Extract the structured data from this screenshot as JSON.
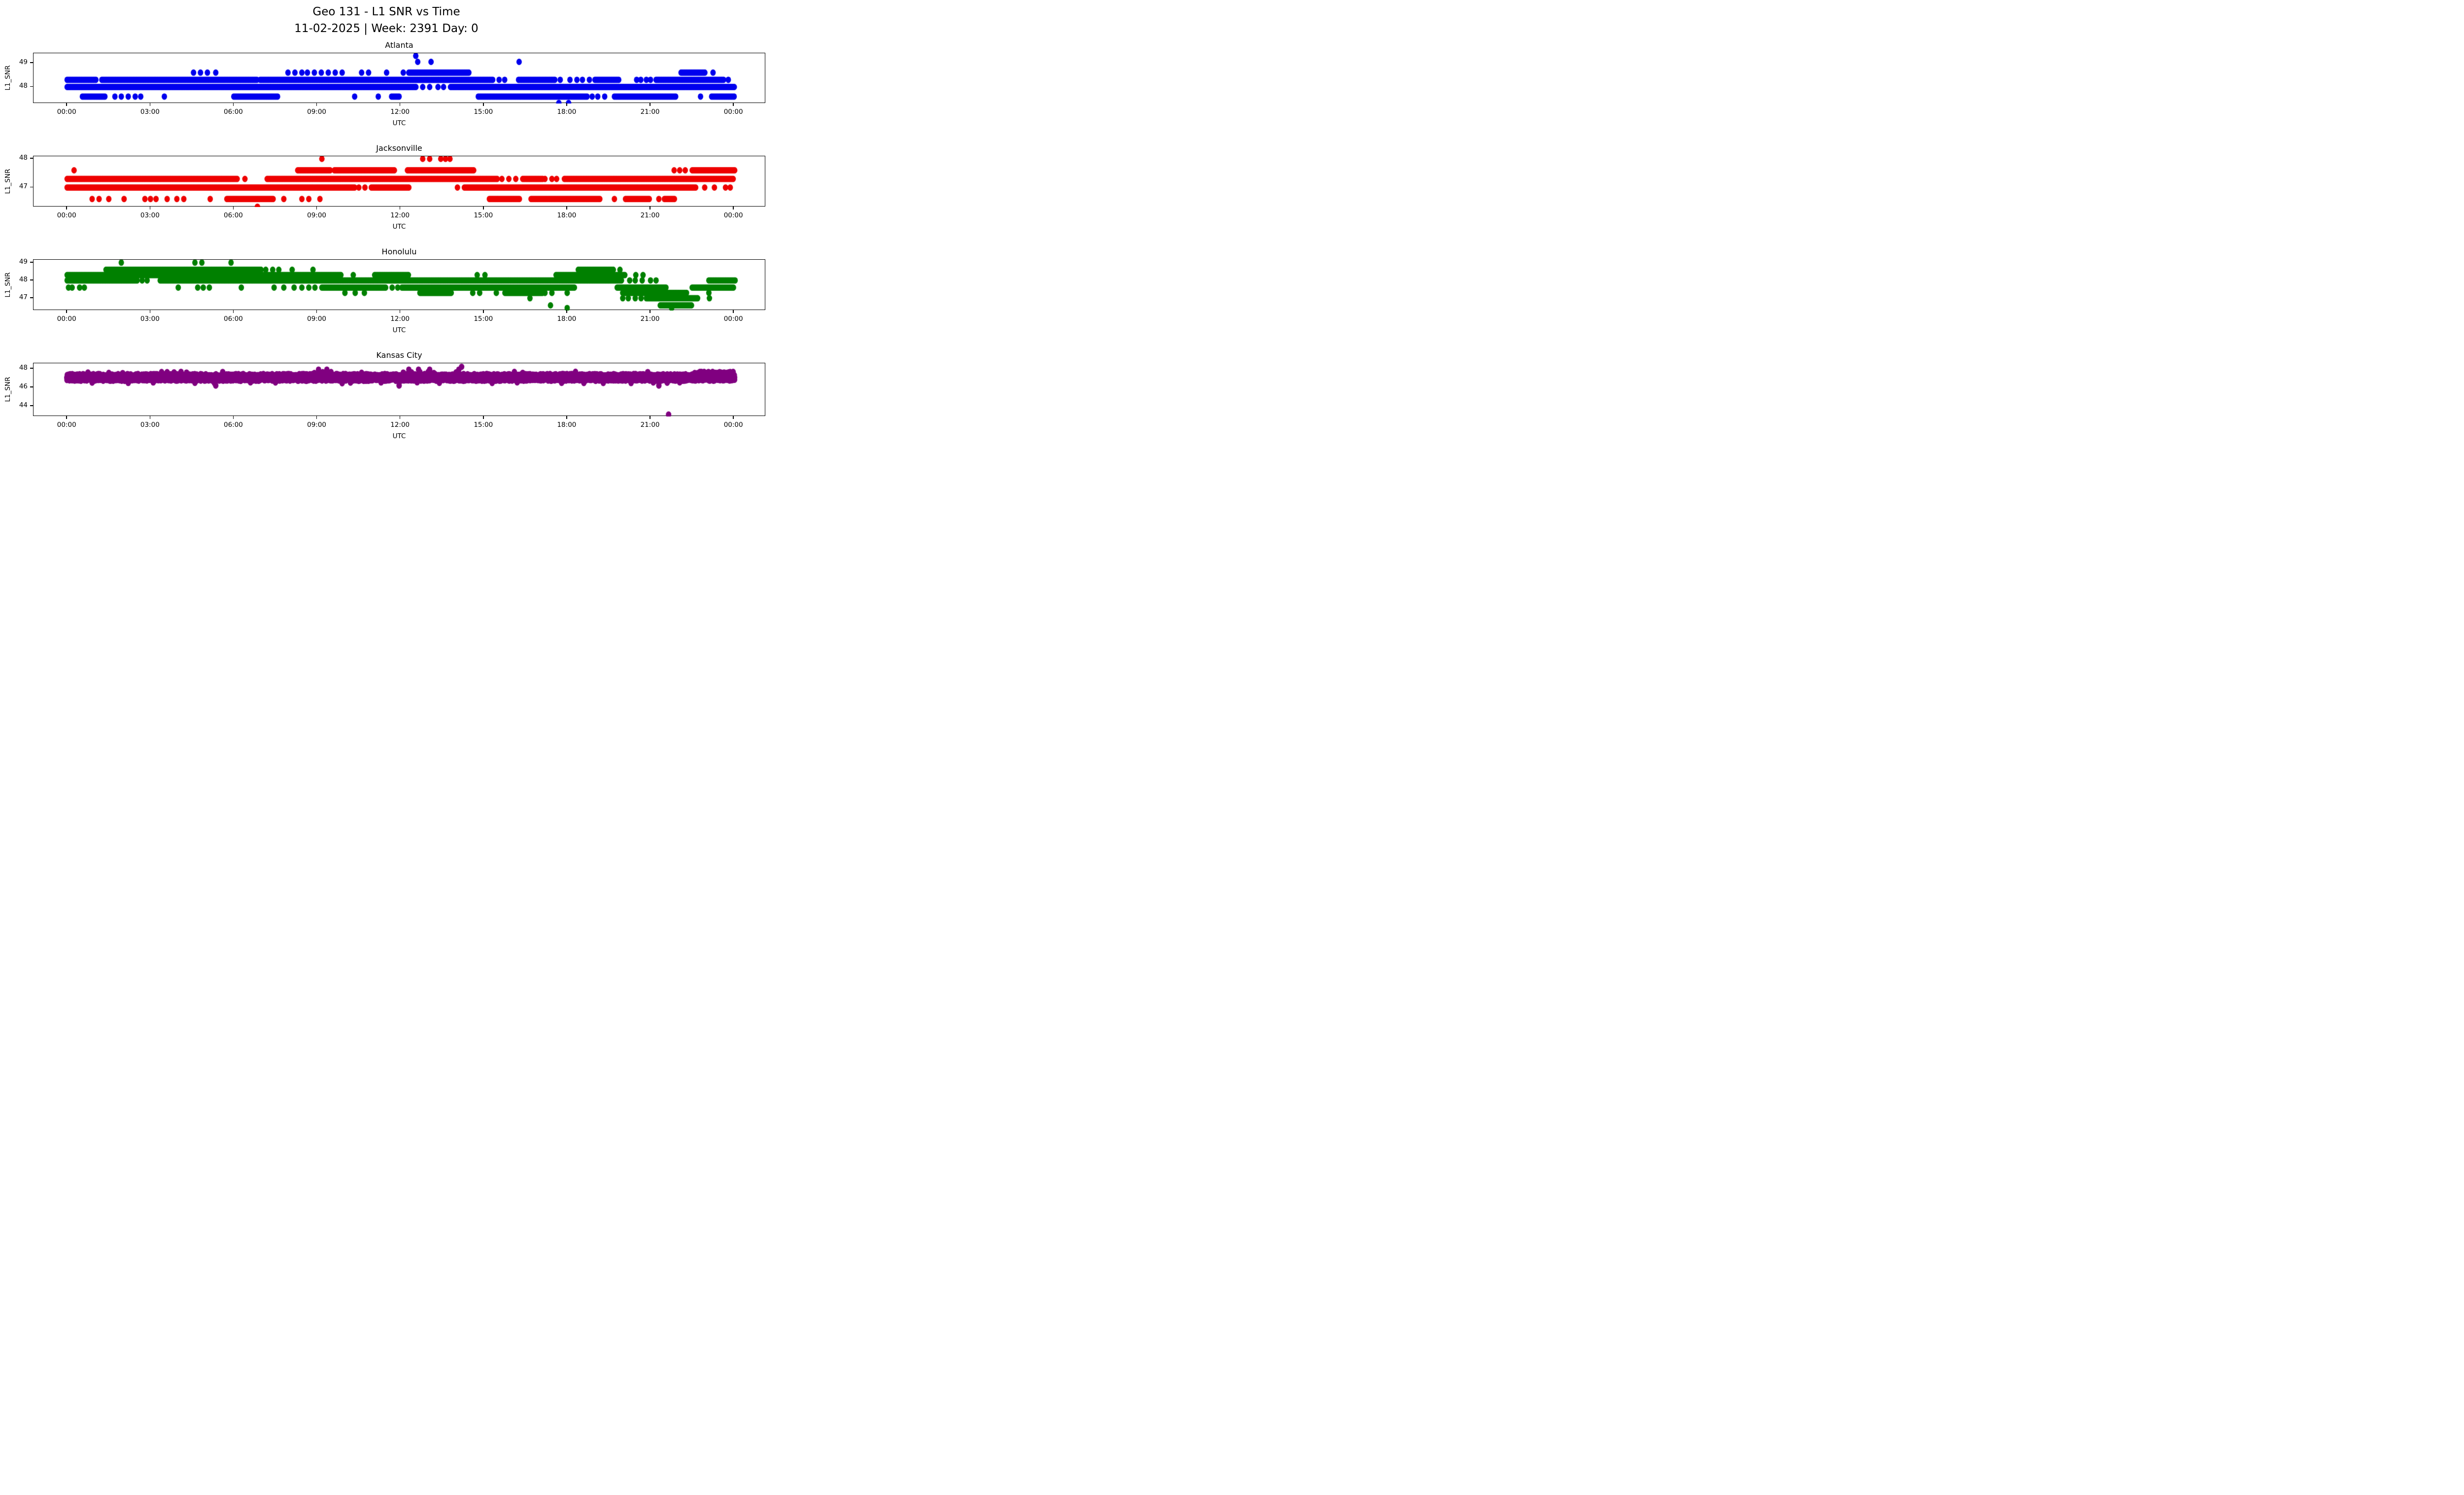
{
  "figure_title": {
    "line1": "Geo 131 - L1 SNR vs Time",
    "line2": "11-02-2025 | Week: 2391 Day: 0"
  },
  "axes_common": {
    "xlabel": "UTC",
    "ylabel": "L1_SNR",
    "x_tick_labels": [
      "00:00",
      "03:00",
      "06:00",
      "09:00",
      "12:00",
      "15:00",
      "18:00",
      "21:00",
      "00:00"
    ],
    "x_tick_hours": [
      0,
      3,
      6,
      9,
      12,
      15,
      18,
      21,
      24
    ],
    "xlim_hours": [
      -1.21,
      25.15
    ]
  },
  "chart_data": [
    {
      "type": "scatter",
      "title": "Atlanta",
      "color": "#0000ee",
      "xlabel": "UTC",
      "ylabel": "L1_SNR",
      "yticks": [
        49,
        48
      ],
      "ylim": [
        47.31,
        49.41
      ],
      "grid": false,
      "legend": "none",
      "bands": [
        {
          "snr": 49.3,
          "dots": [
            12.55
          ]
        },
        {
          "snr": 49.05,
          "dots": [
            12.62,
            13.1,
            16.27
          ]
        },
        {
          "snr": 48.6,
          "solid": [
            [
              12.3,
              14.5
            ],
            [
              22.1,
              23.0
            ]
          ],
          "dots": [
            4.55,
            4.8,
            5.05,
            5.35,
            7.95,
            8.2,
            8.45,
            8.65,
            8.9,
            9.15,
            9.4,
            9.65,
            9.9,
            10.6,
            10.85,
            11.5,
            12.1,
            23.25
          ]
        },
        {
          "snr": 48.3,
          "solid": [
            [
              0,
              1.05
            ],
            [
              1.25,
              6.83
            ],
            [
              6.95,
              15.35
            ],
            [
              16.25,
              17.6
            ],
            [
              19.0,
              19.9
            ],
            [
              21.2,
              23.65
            ]
          ],
          "dots": [
            15.55,
            15.75,
            17.75,
            18.1,
            18.35,
            18.55,
            18.8,
            20.5,
            20.65,
            20.85,
            21.0,
            23.8
          ]
        },
        {
          "snr": 48.0,
          "solid": [
            [
              0,
              12.58
            ],
            [
              13.8,
              24.05
            ]
          ],
          "dots": [
            12.8,
            13.05,
            13.35,
            13.55
          ]
        },
        {
          "snr": 47.6,
          "solid": [
            [
              0.55,
              1.4
            ],
            [
              6.0,
              7.6
            ],
            [
              11.68,
              11.95
            ],
            [
              14.8,
              18.75
            ],
            [
              19.7,
              21.95
            ],
            [
              23.2,
              24.05
            ]
          ],
          "dots": [
            1.72,
            1.95,
            2.2,
            2.45,
            2.65,
            3.5,
            10.35,
            11.2,
            18.9,
            19.1,
            19.35,
            22.8
          ]
        },
        {
          "snr": 47.33,
          "dots": [
            17.7,
            18.05
          ]
        }
      ]
    },
    {
      "type": "scatter",
      "title": "Jacksonville",
      "color": "#ee0000",
      "xlabel": "UTC",
      "ylabel": "L1_SNR",
      "yticks": [
        48,
        47
      ],
      "ylim": [
        46.32,
        48.09
      ],
      "grid": false,
      "legend": "none",
      "bands": [
        {
          "snr": 48.0,
          "dots": [
            9.17,
            12.8,
            13.05,
            13.45,
            13.62,
            13.78
          ]
        },
        {
          "snr": 47.6,
          "solid": [
            [
              8.3,
              9.5
            ],
            [
              9.62,
              11.8
            ],
            [
              12.25,
              14.65
            ],
            [
              22.5,
              24.05
            ]
          ],
          "dots": [
            0.25,
            21.85,
            22.05,
            22.25
          ]
        },
        {
          "snr": 47.3,
          "solid": [
            [
              0,
              6.15
            ],
            [
              7.2,
              15.5
            ],
            [
              16.4,
              17.15
            ],
            [
              17.9,
              24.0
            ]
          ],
          "dots": [
            6.4,
            15.65,
            15.9,
            16.15,
            17.2,
            17.45,
            17.62
          ]
        },
        {
          "snr": 47.0,
          "solid": [
            [
              0,
              10.35
            ],
            [
              10.95,
              12.3
            ],
            [
              14.3,
              22.65
            ]
          ],
          "dots": [
            10.5,
            10.72,
            14.05,
            22.95,
            23.3,
            23.7,
            23.87
          ]
        },
        {
          "snr": 46.6,
          "solid": [
            [
              5.75,
              7.45
            ],
            [
              15.2,
              16.3
            ],
            [
              16.7,
              19.2
            ],
            [
              20.1,
              21.0
            ],
            [
              21.5,
              21.9
            ]
          ],
          "dots": [
            0.9,
            1.15,
            1.5,
            2.05,
            2.8,
            3.0,
            3.2,
            3.6,
            3.95,
            4.2,
            5.15,
            7.8,
            8.45,
            8.7,
            9.1,
            19.7,
            21.3
          ]
        },
        {
          "snr": 46.33,
          "dots": [
            6.85
          ]
        }
      ]
    },
    {
      "type": "scatter",
      "title": "Honolulu",
      "color": "#008000",
      "xlabel": "UTC",
      "ylabel": "L1_SNR",
      "yticks": [
        49,
        48,
        47
      ],
      "ylim": [
        46.31,
        49.16
      ],
      "grid": false,
      "legend": "none",
      "bands": [
        {
          "snr": 49.0,
          "dots": [
            1.95,
            4.6,
            4.85,
            5.9
          ]
        },
        {
          "snr": 48.6,
          "solid": [
            [
              1.4,
              7.0
            ],
            [
              18.4,
              19.7
            ]
          ],
          "dots": [
            7.15,
            7.4,
            7.62,
            8.1,
            8.85,
            19.9
          ]
        },
        {
          "snr": 48.3,
          "solid": [
            [
              0,
              9.87
            ],
            [
              11.07,
              12.3
            ],
            [
              17.6,
              20.1
            ]
          ],
          "dots": [
            10.3,
            14.76,
            15.04,
            20.47,
            20.73
          ]
        },
        {
          "snr": 48.0,
          "solid": [
            [
              0,
              2.53
            ],
            [
              3.35,
              20.0
            ],
            [
              23.1,
              24.05
            ]
          ],
          "dots": [
            2.7,
            2.88,
            20.25,
            20.45,
            20.7,
            21.0,
            21.2
          ]
        },
        {
          "snr": 47.6,
          "solid": [
            [
              9.17,
              11.5
            ],
            [
              12.05,
              18.3
            ],
            [
              19.8,
              21.6
            ],
            [
              22.5,
              24.0
            ]
          ],
          "dots": [
            0.05,
            0.18,
            0.45,
            0.62,
            4.0,
            4.7,
            4.9,
            5.12,
            6.27,
            7.45,
            7.8,
            8.17,
            8.45,
            8.7,
            8.92,
            11.7,
            11.9
          ]
        },
        {
          "snr": 47.3,
          "solid": [
            [
              12.7,
              13.85
            ],
            [
              15.76,
              17.15
            ],
            [
              20.0,
              22.3
            ]
          ],
          "dots": [
            10.0,
            10.37,
            10.7,
            14.6,
            14.85,
            15.45,
            17.2,
            17.45,
            18.0,
            23.1
          ]
        },
        {
          "snr": 47.0,
          "solid": [
            [
              20.85,
              22.7
            ]
          ],
          "dots": [
            16.66,
            20.0,
            20.2,
            20.45,
            20.66,
            23.12
          ]
        },
        {
          "snr": 46.6,
          "solid": [
            [
              21.35,
              22.5
            ]
          ],
          "dots": [
            17.4
          ]
        },
        {
          "snr": 46.45,
          "dots": [
            18.0,
            21.76
          ]
        }
      ]
    },
    {
      "type": "scatter",
      "title": "Kansas City",
      "color": "#800080",
      "xlabel": "UTC",
      "ylabel": "L1_SNR",
      "yticks": [
        48,
        46,
        44
      ],
      "ylim": [
        42.89,
        48.58
      ],
      "grid": false,
      "legend": "none",
      "bands": [
        {
          "snr": 47.35,
          "solid": [
            [
              0,
              24.05
            ]
          ],
          "jitter": 0.09
        },
        {
          "snr": 47.15,
          "solid": [
            [
              0,
              24.05
            ]
          ],
          "jitter": 0.09
        },
        {
          "snr": 46.95,
          "solid": [
            [
              0,
              24.05
            ]
          ],
          "jitter": 0.09
        },
        {
          "snr": 46.78,
          "solid": [
            [
              0,
              24.05
            ]
          ],
          "jitter": 0.08
        },
        {
          "snr": 47.6,
          "jitter": 0.07,
          "step": 0.08,
          "solid": [
            [
              22.6,
              24.0
            ]
          ],
          "dots": [
            0.75,
            1.5,
            2.0,
            3.4,
            3.6,
            3.85,
            4.1,
            4.3,
            5.6,
            8.9,
            9.2,
            9.5,
            10.6,
            12.1,
            12.4,
            12.7,
            13.0,
            13.2,
            14.0,
            16.1,
            16.4,
            18.3,
            20.9,
            23.1,
            23.5
          ]
        },
        {
          "snr": 47.9,
          "dots": [
            9.05,
            9.35,
            12.3,
            12.65,
            13.05,
            14.1
          ]
        },
        {
          "snr": 48.2,
          "dots": [
            14.2
          ]
        },
        {
          "snr": 46.5,
          "jitter": 0.05,
          "dots": [
            0.9,
            2.2,
            3.1,
            4.6,
            5.3,
            6.6,
            7.5,
            9.9,
            10.2,
            11.3,
            12.6,
            13.4,
            15.3,
            16.2,
            17.8,
            18.6,
            19.3,
            20.3,
            21.1,
            21.6,
            22.05
          ]
        },
        {
          "snr": 46.2,
          "dots": [
            5.35,
            11.95,
            21.3
          ]
        },
        {
          "snr": 43.1,
          "dots": [
            21.65
          ]
        }
      ]
    }
  ]
}
